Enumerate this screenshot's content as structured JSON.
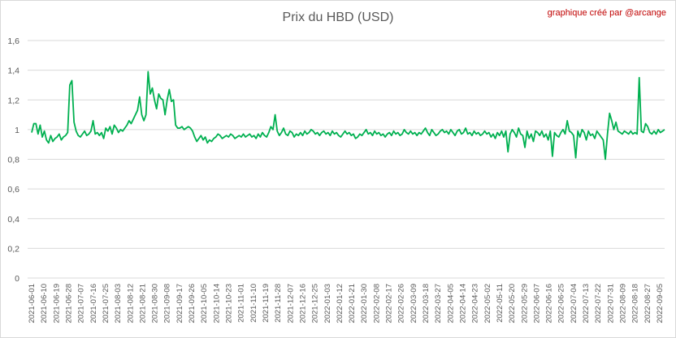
{
  "chart_data": {
    "type": "line",
    "title": "Prix du HBD (USD)",
    "credit": "graphique créé par @arcange",
    "xlabel": "",
    "ylabel": "",
    "ylim": [
      0,
      1.6
    ],
    "y_ticks": [
      "0",
      "0,2",
      "0,4",
      "0,6",
      "0,8",
      "1",
      "1,2",
      "1,4",
      "1,6"
    ],
    "x_tick_labels": [
      "2021-06-01",
      "2021-06-10",
      "2021-06-19",
      "2021-06-28",
      "2021-07-07",
      "2021-07-16",
      "2021-07-25",
      "2021-08-03",
      "2021-08-12",
      "2021-08-21",
      "2021-08-30",
      "2021-09-08",
      "2021-09-17",
      "2021-09-26",
      "2021-10-05",
      "2021-10-14",
      "2021-10-23",
      "2021-11-01",
      "2021-11-10",
      "2021-11-19",
      "2021-11-28",
      "2021-12-07",
      "2021-12-16",
      "2021-12-25",
      "2022-01-03",
      "2022-01-12",
      "2022-01-21",
      "2022-01-30",
      "2022-02-08",
      "2022-02-17",
      "2022-02-26",
      "2022-03-09",
      "2022-03-18",
      "2022-03-27",
      "2022-04-05",
      "2022-04-14",
      "2022-04-23",
      "2022-05-02",
      "2022-05-11",
      "2022-05-20",
      "2022-05-29",
      "2022-06-07",
      "2022-06-16",
      "2022-06-25",
      "2022-07-04",
      "2022-07-13",
      "2022-07-22",
      "2022-07-31",
      "2022-08-09",
      "2022-08-18",
      "2022-08-27",
      "2022-09-05"
    ],
    "grid": true,
    "legend": "none",
    "line_color": "#00b050",
    "series": [
      {
        "values": [
          0.98,
          1.04,
          1.04,
          0.97,
          1.03,
          0.95,
          0.99,
          0.93,
          0.91,
          0.96,
          0.92,
          0.94,
          0.95,
          0.97,
          0.93,
          0.95,
          0.96,
          0.98,
          1.3,
          1.33,
          1.05,
          0.99,
          0.96,
          0.95,
          0.97,
          0.99,
          0.96,
          0.97,
          0.99,
          1.06,
          0.97,
          0.98,
          0.96,
          0.98,
          0.94,
          1.01,
          0.99,
          1.02,
          0.97,
          1.03,
          1.01,
          0.98,
          1.0,
          0.99,
          1.01,
          1.03,
          1.06,
          1.04,
          1.07,
          1.1,
          1.13,
          1.22,
          1.1,
          1.06,
          1.1,
          1.39,
          1.24,
          1.28,
          1.2,
          1.14,
          1.24,
          1.21,
          1.2,
          1.1,
          1.2,
          1.27,
          1.19,
          1.2,
          1.03,
          1.01,
          1.01,
          1.02,
          1.0,
          1.01,
          1.02,
          1.01,
          0.99,
          0.95,
          0.92,
          0.94,
          0.96,
          0.93,
          0.95,
          0.91,
          0.93,
          0.92,
          0.94,
          0.95,
          0.97,
          0.96,
          0.94,
          0.95,
          0.96,
          0.95,
          0.97,
          0.96,
          0.94,
          0.95,
          0.96,
          0.95,
          0.97,
          0.95,
          0.96,
          0.97,
          0.95,
          0.96,
          0.94,
          0.97,
          0.95,
          0.98,
          0.96,
          0.95,
          0.98,
          1.02,
          1.0,
          1.1,
          0.99,
          0.96,
          0.98,
          1.01,
          0.97,
          0.96,
          0.99,
          0.98,
          0.95,
          0.97,
          0.96,
          0.98,
          0.96,
          0.99,
          0.97,
          0.98,
          1.0,
          0.99,
          0.97,
          0.98,
          0.96,
          0.98,
          0.99,
          0.97,
          0.98,
          0.96,
          0.99,
          0.97,
          0.98,
          0.96,
          0.95,
          0.97,
          0.99,
          0.97,
          0.98,
          0.96,
          0.97,
          0.94,
          0.95,
          0.97,
          0.96,
          0.98,
          1.0,
          0.97,
          0.98,
          0.96,
          0.99,
          0.97,
          0.98,
          0.96,
          0.97,
          0.95,
          0.97,
          0.98,
          0.96,
          0.99,
          0.97,
          0.98,
          0.96,
          0.97,
          1.0,
          0.98,
          0.97,
          0.99,
          0.97,
          0.98,
          0.96,
          0.98,
          0.97,
          0.99,
          1.01,
          0.98,
          0.96,
          1.0,
          0.98,
          0.96,
          0.97,
          0.99,
          1.0,
          0.98,
          0.99,
          0.97,
          1.0,
          0.98,
          0.96,
          0.99,
          1.0,
          0.97,
          0.98,
          1.01,
          0.97,
          0.98,
          0.96,
          0.99,
          0.97,
          0.98,
          0.96,
          0.97,
          0.99,
          0.97,
          0.98,
          0.95,
          0.97,
          0.94,
          0.98,
          0.96,
          0.99,
          0.95,
          0.99,
          0.85,
          0.97,
          1.0,
          0.98,
          0.95,
          1.01,
          0.97,
          0.96,
          0.88,
          0.99,
          0.94,
          0.97,
          0.92,
          0.99,
          0.98,
          0.96,
          0.99,
          0.95,
          0.97,
          0.93,
          0.99,
          0.82,
          0.98,
          0.96,
          0.95,
          0.98,
          1.0,
          0.97,
          1.06,
          0.99,
          0.98,
          0.96,
          0.81,
          0.99,
          0.95,
          1.0,
          0.98,
          0.93,
          0.99,
          0.96,
          0.97,
          0.94,
          0.99,
          0.97,
          0.95,
          0.93,
          0.8,
          0.97,
          1.11,
          1.06,
          1.0,
          1.05,
          0.99,
          0.98,
          0.97,
          0.99,
          0.98,
          0.97,
          0.99,
          0.97,
          0.98,
          0.97,
          1.35,
          0.99,
          0.98,
          1.04,
          1.02,
          0.98,
          0.97,
          0.99,
          0.97,
          1.0,
          0.98,
          0.99,
          1.0
        ]
      }
    ]
  }
}
